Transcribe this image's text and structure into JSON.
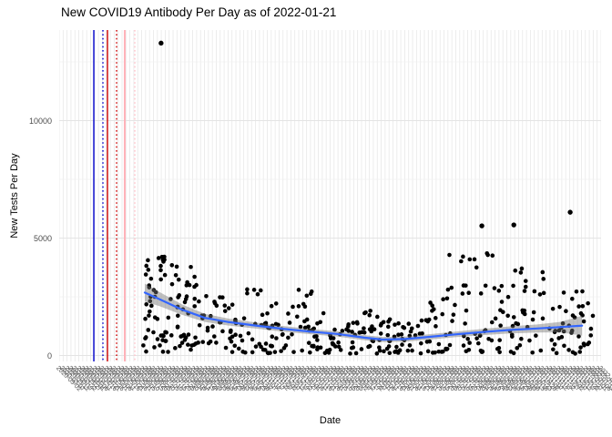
{
  "chart_data": {
    "type": "scatter",
    "title": "New COVID19 Antibody Per Day as of 2022-01-21",
    "xlabel": "Date",
    "ylabel": "New Tests Per Day",
    "yticks": [
      0,
      5000,
      10000
    ],
    "ytick_labels": [
      "0",
      "5000",
      "10000"
    ],
    "yminor": [
      2500,
      7500,
      12500
    ],
    "ylim": [
      -250,
      13850
    ],
    "grid": true,
    "legend": "none",
    "point_color": "#000000",
    "x_axis": {
      "start_date": "2020-03-02",
      "end_date": "2022-01-21",
      "label_step_days": 5,
      "n_breaks": 139,
      "labels_rotated_deg": 45
    },
    "style": {
      "background": "#ffffff",
      "grid_major": "#e4e4e4",
      "grid_minor": "#f0f0f0",
      "grid_vertical": "#e8e8e8",
      "tick_label_color": "#4d4d4d"
    },
    "vlines": [
      {
        "name": "vline-blue-solid",
        "f": 0.0639,
        "color": "#0000cd",
        "style": "solid",
        "width": 1.4
      },
      {
        "name": "vline-blue-dotted",
        "f": 0.0807,
        "color": "#0000cd",
        "style": "dotted",
        "width": 1.4
      },
      {
        "name": "vline-red-solid",
        "f": 0.0891,
        "color": "#cc0000",
        "style": "solid",
        "width": 1.4
      },
      {
        "name": "vline-red-dotted",
        "f": 0.1059,
        "color": "#cc0000",
        "style": "dotted",
        "width": 1.4
      },
      {
        "name": "vline-pink-solid",
        "f": 0.121,
        "color": "#ffb3ba",
        "style": "solid",
        "width": 2.0
      },
      {
        "name": "vline-pink-dotted",
        "f": 0.1395,
        "color": "#ffc9cf",
        "style": "dotted",
        "width": 1.6
      }
    ],
    "trend": {
      "color": "#3366FF",
      "line_width": 2.2,
      "band_color": "rgba(115,115,115,0.45)",
      "points": [
        [
          0.158,
          2680
        ],
        [
          0.185,
          2400
        ],
        [
          0.227,
          1950
        ],
        [
          0.269,
          1600
        ],
        [
          0.311,
          1430
        ],
        [
          0.361,
          1280
        ],
        [
          0.412,
          1140
        ],
        [
          0.462,
          1020
        ],
        [
          0.513,
          920
        ],
        [
          0.563,
          760
        ],
        [
          0.597,
          680
        ],
        [
          0.639,
          700
        ],
        [
          0.681,
          790
        ],
        [
          0.731,
          900
        ],
        [
          0.782,
          1000
        ],
        [
          0.832,
          1090
        ],
        [
          0.882,
          1150
        ],
        [
          0.924,
          1210
        ],
        [
          0.965,
          1270
        ]
      ],
      "ci_halfwidth": [
        380,
        300,
        220,
        170,
        150,
        130,
        120,
        110,
        110,
        110,
        110,
        110,
        115,
        120,
        130,
        150,
        170,
        220,
        420
      ]
    },
    "scatter": {
      "seed": 7,
      "point_radius": 2.3,
      "outliers": [
        [
          0.188,
          13300
        ],
        [
          0.943,
          6100
        ],
        [
          0.839,
          5560
        ],
        [
          0.78,
          5520
        ]
      ],
      "segments": [
        {
          "f0": 0.155,
          "f1": 0.175,
          "n": 12,
          "vmin": 200,
          "vmax": 3900,
          "pow": 1.0
        },
        {
          "f0": 0.16,
          "f1": 0.21,
          "n": 26,
          "vmin": 1500,
          "vmax": 4300,
          "pow": 1.0
        },
        {
          "f0": 0.16,
          "f1": 0.21,
          "n": 16,
          "vmin": 150,
          "vmax": 1000,
          "pow": 1.0
        },
        {
          "f0": 0.21,
          "f1": 0.26,
          "n": 26,
          "vmin": 1200,
          "vmax": 3800,
          "pow": 1.2
        },
        {
          "f0": 0.21,
          "f1": 0.26,
          "n": 16,
          "vmin": 120,
          "vmax": 900,
          "pow": 1.0
        },
        {
          "f0": 0.26,
          "f1": 0.31,
          "n": 24,
          "vmin": 150,
          "vmax": 2600,
          "pow": 1.4
        },
        {
          "f0": 0.31,
          "f1": 0.4,
          "n": 48,
          "vmin": 100,
          "vmax": 2200,
          "pow": 1.5
        },
        {
          "f0": 0.33,
          "f1": 0.4,
          "n": 5,
          "vmin": 2300,
          "vmax": 3000,
          "pow": 1.0
        },
        {
          "f0": 0.4,
          "f1": 0.5,
          "n": 48,
          "vmin": 100,
          "vmax": 2300,
          "pow": 1.7
        },
        {
          "f0": 0.42,
          "f1": 0.48,
          "n": 4,
          "vmin": 2400,
          "vmax": 3000,
          "pow": 1.0
        },
        {
          "f0": 0.5,
          "f1": 0.6,
          "n": 50,
          "vmin": 80,
          "vmax": 1500,
          "pow": 1.4
        },
        {
          "f0": 0.52,
          "f1": 0.6,
          "n": 5,
          "vmin": 1600,
          "vmax": 2100,
          "pow": 1.0
        },
        {
          "f0": 0.6,
          "f1": 0.7,
          "n": 48,
          "vmin": 80,
          "vmax": 1600,
          "pow": 1.4
        },
        {
          "f0": 0.63,
          "f1": 0.7,
          "n": 4,
          "vmin": 1700,
          "vmax": 2300,
          "pow": 1.0
        },
        {
          "f0": 0.7,
          "f1": 0.8,
          "n": 46,
          "vmin": 150,
          "vmax": 3200,
          "pow": 1.6
        },
        {
          "f0": 0.72,
          "f1": 0.8,
          "n": 9,
          "vmin": 3300,
          "vmax": 4500,
          "pow": 1.0
        },
        {
          "f0": 0.8,
          "f1": 0.9,
          "n": 44,
          "vmin": 100,
          "vmax": 3000,
          "pow": 1.6
        },
        {
          "f0": 0.81,
          "f1": 0.9,
          "n": 6,
          "vmin": 3100,
          "vmax": 4100,
          "pow": 1.0
        },
        {
          "f0": 0.9,
          "f1": 0.985,
          "n": 42,
          "vmin": 80,
          "vmax": 2500,
          "pow": 1.5
        },
        {
          "f0": 0.92,
          "f1": 0.98,
          "n": 3,
          "vmin": 2600,
          "vmax": 3100,
          "pow": 1.0
        }
      ]
    }
  }
}
